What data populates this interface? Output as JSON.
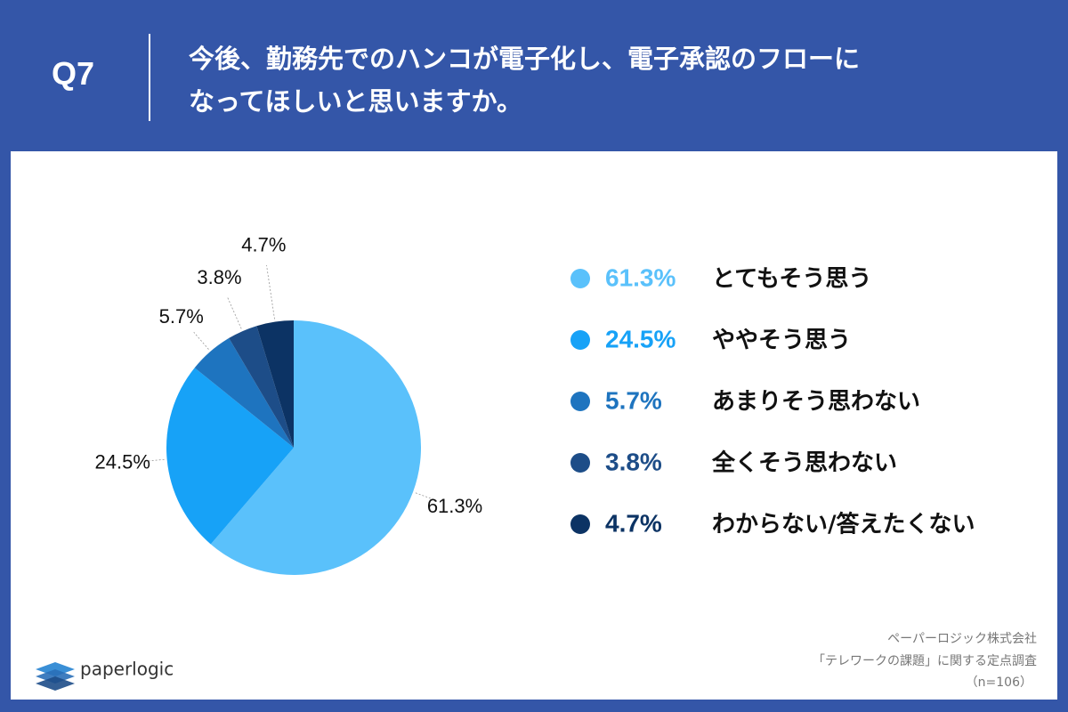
{
  "header": {
    "label": "Q7"
  },
  "chart_data": {
    "type": "pie",
    "title": "今後、勤務先でのハンコが電子化し、電子承認のフローに\nなってほしいと思いますか。",
    "categories": [
      "とてもそう思う",
      "ややそう思う",
      "あまりそう思わない",
      "全くそう思わない",
      "わからない/答えたくない"
    ],
    "values": [
      61.3,
      24.5,
      5.7,
      3.8,
      4.7
    ],
    "value_labels": [
      "61.3%",
      "24.5%",
      "5.7%",
      "3.8%",
      "4.7%"
    ],
    "colors": [
      "#5ac1fb",
      "#17a2f7",
      "#1e74bf",
      "#1d4d88",
      "#0c3364"
    ],
    "legend": "right"
  },
  "footer": {
    "brand": "paperlogic",
    "lines": [
      "ペーパーロジック株式会社",
      "「テレワークの課題」に関する定点調査",
      "（n=106）"
    ]
  }
}
